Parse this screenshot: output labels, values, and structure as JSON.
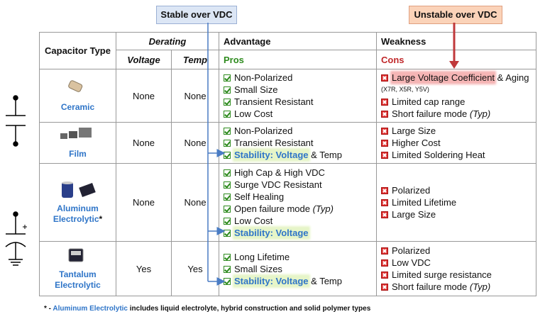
{
  "callouts": {
    "stable": "Stable over VDC",
    "unstable": "Unstable over VDC"
  },
  "header": {
    "capacitor_type": "Capacitor Type",
    "derating": "Derating",
    "voltage": "Voltage",
    "temp": "Temp",
    "advantage": "Advantage",
    "pros": "Pros",
    "weakness": "Weakness",
    "cons": "Cons"
  },
  "rows": [
    {
      "name": "Ceramic",
      "voltage": "None",
      "temp": "None",
      "pros": [
        {
          "text": "Non-Polarized"
        },
        {
          "text": "Small Size"
        },
        {
          "text": "Transient Resistant"
        },
        {
          "text": "Low Cost"
        }
      ],
      "cons": [
        {
          "highlight": "Large Voltage Coefficient",
          "text": "& Aging",
          "sub": "(X7R, X5R, Y5V)"
        },
        {
          "text": "Limited cap range"
        },
        {
          "text": "Short failure mode",
          "note": "(Typ)"
        }
      ]
    },
    {
      "name": "Film",
      "voltage": "None",
      "temp": "None",
      "pros": [
        {
          "text": "Non-Polarized"
        },
        {
          "text": "Transient Resistant"
        },
        {
          "highlight": "Stability: Voltage",
          "text": "& Temp"
        }
      ],
      "cons": [
        {
          "text": "Large Size"
        },
        {
          "text": "Higher Cost"
        },
        {
          "text": "Limited Soldering Heat"
        }
      ]
    },
    {
      "name": "Aluminum Electrolytic",
      "marker": "*",
      "voltage": "None",
      "temp": "None",
      "pros": [
        {
          "text": "High Cap & High VDC"
        },
        {
          "text": "Surge VDC Resistant"
        },
        {
          "text": "Self Healing"
        },
        {
          "text": "Open failure mode",
          "note": "(Typ)"
        },
        {
          "text": "Low Cost"
        },
        {
          "highlight": "Stability: Voltage"
        }
      ],
      "cons": [
        {
          "text": "Polarized"
        },
        {
          "text": "Limited Lifetime"
        },
        {
          "text": "Large Size"
        }
      ]
    },
    {
      "name": "Tantalum Electrolytic",
      "voltage": "Yes",
      "temp": "Yes",
      "pros": [
        {
          "text": "Long Lifetime"
        },
        {
          "text": "Small Sizes"
        },
        {
          "highlight": "Stability: Voltage",
          "text": "& Temp"
        }
      ],
      "cons": [
        {
          "text": "Polarized"
        },
        {
          "text": "Low VDC"
        },
        {
          "text": "Limited surge resistance"
        },
        {
          "text": "Short failure mode",
          "note": "(Typ)"
        }
      ]
    }
  ],
  "footnote": {
    "mark": "* -",
    "term": "Aluminum Electrolytic",
    "text": "includes liquid electrolyte, hybrid construction and solid polymer types"
  }
}
